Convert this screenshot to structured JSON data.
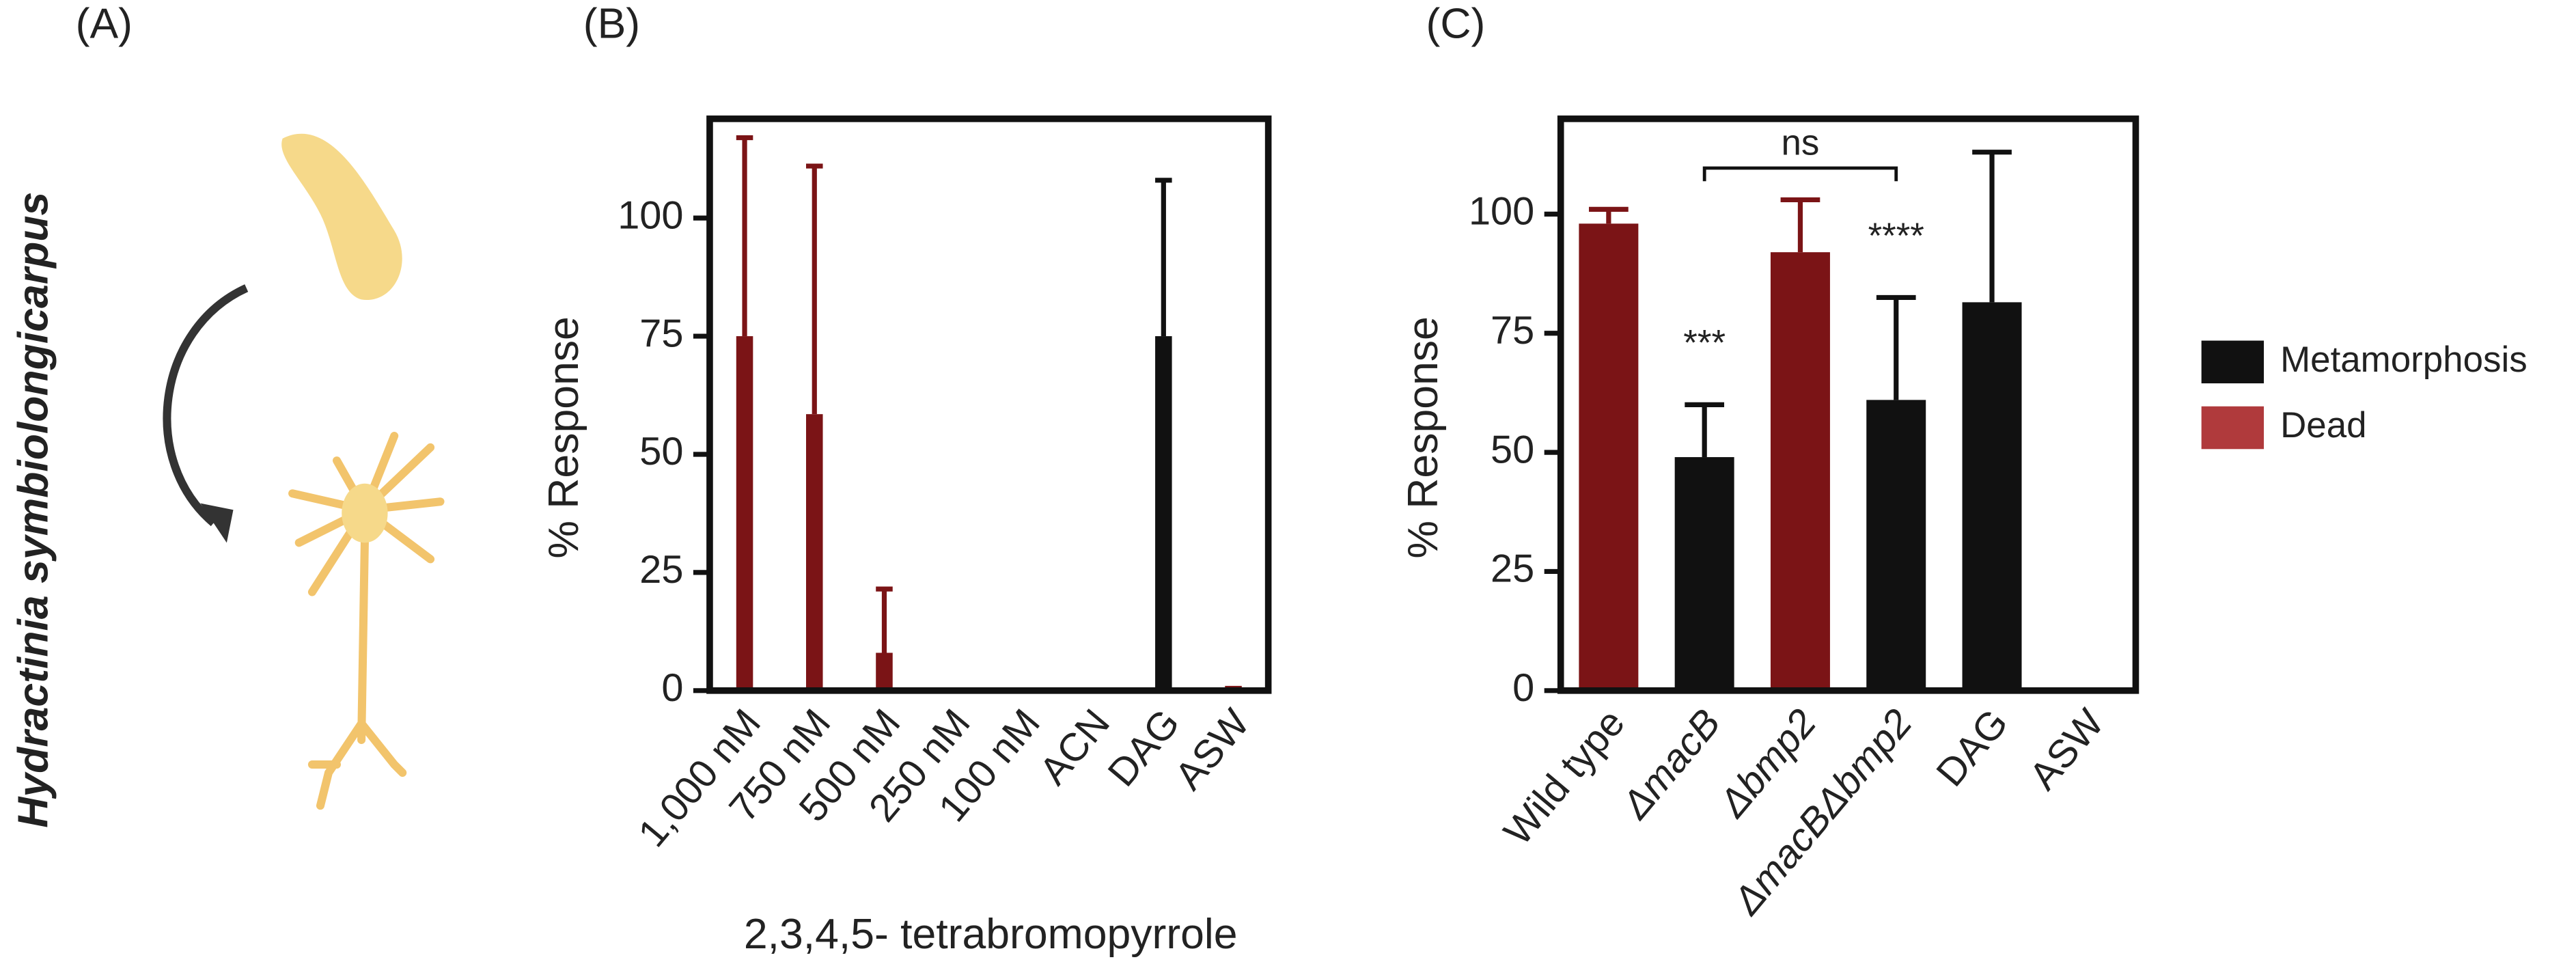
{
  "panel_labels": [
    "(A)",
    "(B)",
    "(C)"
  ],
  "species": "Hydractinia symbiolongicarpus",
  "chart_data": [
    {
      "type": "bar",
      "x_label": "2,3,4,5- tetrabromopyrrole",
      "y_label": "% Response",
      "categories": [
        "1,000 nM",
        "750 nM",
        "500 nM",
        "250 nM",
        "100 nM",
        "ACN",
        "DAG",
        "ASW"
      ],
      "series": [
        {
          "color": "#111111",
          "values": [
            0,
            0,
            0,
            0,
            0,
            0,
            75,
            0
          ],
          "errors": [
            null,
            null,
            null,
            null,
            null,
            null,
            33,
            null
          ]
        },
        {
          "color": "#7b1416",
          "values": [
            75,
            58.5,
            8,
            0,
            0,
            0,
            0,
            1
          ],
          "errors": [
            42,
            52.5,
            13.5,
            null,
            null,
            null,
            null,
            null
          ]
        }
      ],
      "ylim": [
        0,
        121
      ],
      "yticks": [
        0,
        25,
        50,
        75,
        100
      ]
    },
    {
      "type": "bar",
      "y_label": "% Response",
      "categories": [
        "Wild type",
        "ΔmacB",
        "Δbmp2",
        "ΔmacBΔbmp2",
        "DAG",
        "ASW"
      ],
      "series": [
        {
          "name": "Metamorphosis",
          "color": "#111111",
          "legend_color": "#111111",
          "values": [
            0,
            49,
            0,
            61,
            81.5,
            0
          ],
          "errors": [
            null,
            11,
            null,
            21.5,
            31.5,
            null
          ]
        },
        {
          "name": "Dead",
          "color": "#7b1416",
          "legend_color": "#b03a3c",
          "values": [
            98,
            0,
            92,
            0,
            0,
            0
          ],
          "errors": [
            3,
            null,
            11,
            null,
            null,
            null
          ]
        }
      ],
      "annotations": [
        "***",
        "****",
        "ns"
      ],
      "ylim": [
        0,
        120
      ],
      "yticks": [
        0,
        25,
        50,
        75,
        100
      ],
      "legend": "right"
    }
  ]
}
